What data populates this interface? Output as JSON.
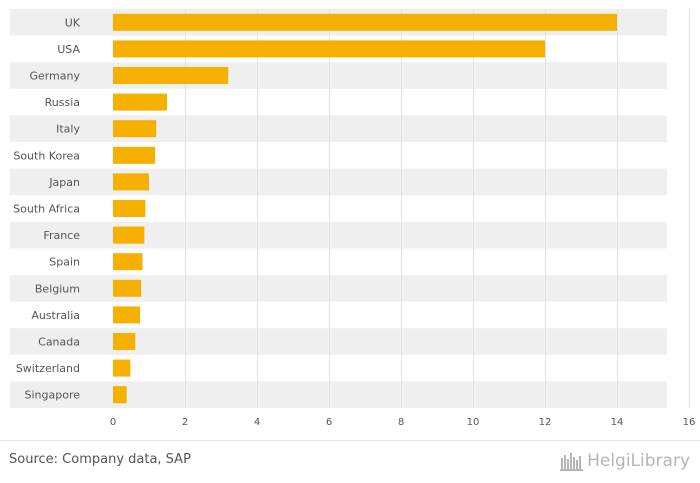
{
  "chart_data": {
    "type": "bar",
    "orientation": "horizontal",
    "title": "",
    "xlabel": "",
    "ylabel": "",
    "categories": [
      "UK",
      "USA",
      "Germany",
      "Russia",
      "Italy",
      "South Korea",
      "Japan",
      "South Africa",
      "France",
      "Spain",
      "Belgium",
      "Australia",
      "Canada",
      "Switzerland",
      "Singapore"
    ],
    "values": [
      14.0,
      12.0,
      3.2,
      1.5,
      1.2,
      1.17,
      1.0,
      0.9,
      0.87,
      0.82,
      0.78,
      0.75,
      0.62,
      0.48,
      0.38
    ],
    "xlim": [
      0,
      16
    ],
    "xticks": [
      0,
      2,
      4,
      6,
      8,
      10,
      12,
      14,
      16
    ],
    "grid": true,
    "legend": "none",
    "colors": {
      "bar": "#f5b000",
      "band": "#efefef",
      "grid": "#e2e2e2",
      "text": "#555555"
    }
  },
  "footer": {
    "source": "Source: Company data, SAP",
    "brand": "HelgiLibrary",
    "brand_icon": "bookshelf-logo-icon"
  }
}
